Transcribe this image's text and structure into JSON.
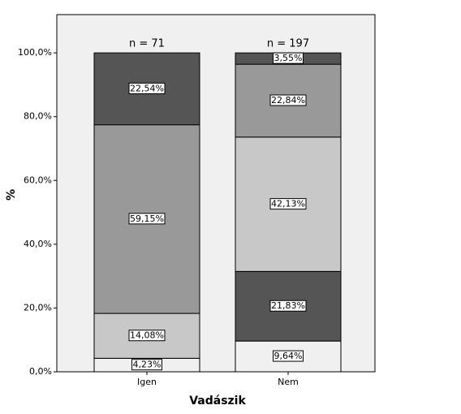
{
  "chart_data": {
    "type": "stacked_bar",
    "categories": [
      "Igen",
      "Nem"
    ],
    "annotations": [
      "n = 71",
      "n = 197"
    ],
    "x_label": "Vadászik",
    "y_label": "%",
    "series": [
      {
        "color": "#f0f0f0",
        "values": [
          4.23,
          9.64
        ],
        "value_labels": [
          "4,23%",
          "9,64%"
        ]
      },
      {
        "color": "#555555",
        "values": [
          null,
          21.83
        ],
        "value_labels": [
          null,
          "21,83%"
        ]
      },
      {
        "color": "#c8c8c8",
        "values": [
          14.08,
          42.13
        ],
        "value_labels": [
          "14,08%",
          "42,13%"
        ]
      },
      {
        "color": "#999999",
        "values": [
          59.15,
          22.84
        ],
        "value_labels": [
          "59,15%",
          "22,84%"
        ]
      },
      {
        "color": "#555555",
        "values": [
          22.54,
          3.55
        ],
        "value_labels": [
          "22,54%",
          "3,55%"
        ]
      }
    ],
    "ylim": [
      0,
      112
    ],
    "yticks": [
      {
        "value": 0,
        "label": "0,0%"
      },
      {
        "value": 20,
        "label": "20,0%"
      },
      {
        "value": 40,
        "label": "40,0%"
      },
      {
        "value": 60,
        "label": "60,0%"
      },
      {
        "value": 80,
        "label": "80,0%"
      },
      {
        "value": 100,
        "label": "100,0%"
      }
    ],
    "grid": false
  }
}
